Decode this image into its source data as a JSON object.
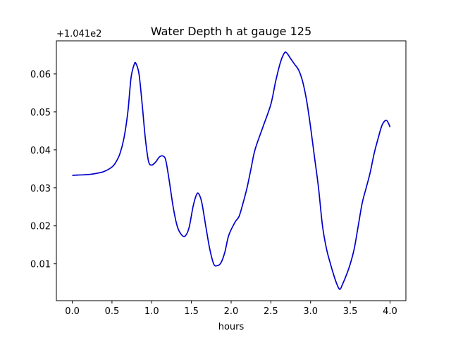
{
  "chart_data": {
    "type": "line",
    "title": "Water Depth h at gauge 125",
    "xlabel": "hours",
    "ylabel": "",
    "y_offset_label": "+1.041e2",
    "xlim": [
      -0.2,
      4.2
    ],
    "ylim": [
      0.0003,
      0.0687
    ],
    "xticks": [
      0.0,
      0.5,
      1.0,
      1.5,
      2.0,
      2.5,
      3.0,
      3.5,
      4.0
    ],
    "xtick_labels": [
      "0.0",
      "0.5",
      "1.0",
      "1.5",
      "2.0",
      "2.5",
      "3.0",
      "3.5",
      "4.0"
    ],
    "yticks": [
      0.01,
      0.02,
      0.03,
      0.04,
      0.05,
      0.06
    ],
    "ytick_labels": [
      "0.01",
      "0.02",
      "0.03",
      "0.04",
      "0.05",
      "0.06"
    ],
    "grid": false,
    "series": [
      {
        "color": "#0000cc",
        "x": [
          0.0,
          0.1,
          0.2,
          0.3,
          0.4,
          0.5,
          0.55,
          0.6,
          0.65,
          0.7,
          0.74,
          0.78,
          0.8,
          0.84,
          0.88,
          0.92,
          0.96,
          1.0,
          1.05,
          1.1,
          1.15,
          1.18,
          1.22,
          1.27,
          1.32,
          1.37,
          1.42,
          1.47,
          1.52,
          1.56,
          1.59,
          1.63,
          1.68,
          1.73,
          1.78,
          1.82,
          1.87,
          1.92,
          1.97,
          2.05,
          2.1,
          2.15,
          2.2,
          2.25,
          2.3,
          2.4,
          2.5,
          2.56,
          2.62,
          2.67,
          2.7,
          2.75,
          2.8,
          2.85,
          2.9,
          2.95,
          3.0,
          3.05,
          3.1,
          3.15,
          3.2,
          3.25,
          3.3,
          3.34,
          3.37,
          3.4,
          3.45,
          3.5,
          3.55,
          3.6,
          3.65,
          3.7,
          3.75,
          3.8,
          3.85,
          3.9,
          3.95,
          3.98,
          4.0
        ],
        "y": [
          0.0333,
          0.0334,
          0.0335,
          0.0338,
          0.0343,
          0.0355,
          0.0368,
          0.039,
          0.043,
          0.05,
          0.059,
          0.0625,
          0.0628,
          0.06,
          0.052,
          0.043,
          0.037,
          0.036,
          0.0368,
          0.0382,
          0.0383,
          0.037,
          0.032,
          0.025,
          0.02,
          0.0178,
          0.0173,
          0.0195,
          0.025,
          0.028,
          0.0285,
          0.0262,
          0.02,
          0.014,
          0.01,
          0.0095,
          0.0102,
          0.013,
          0.0175,
          0.021,
          0.0225,
          0.026,
          0.03,
          0.035,
          0.04,
          0.046,
          0.052,
          0.058,
          0.063,
          0.0655,
          0.0655,
          0.064,
          0.0625,
          0.061,
          0.058,
          0.053,
          0.046,
          0.038,
          0.03,
          0.02,
          0.014,
          0.01,
          0.0065,
          0.0042,
          0.0033,
          0.0045,
          0.007,
          0.01,
          0.014,
          0.02,
          0.026,
          0.03,
          0.034,
          0.039,
          0.043,
          0.0465,
          0.0478,
          0.047,
          0.046
        ]
      }
    ]
  }
}
